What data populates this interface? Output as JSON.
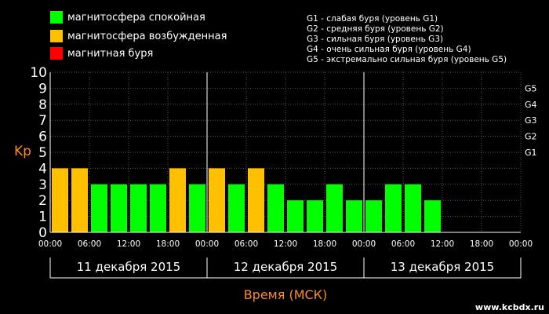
{
  "chart_data": {
    "type": "bar",
    "ylabel": "Kp",
    "xlabel": "Время (МСК)",
    "ylim": [
      0,
      10
    ],
    "yticks": [
      0,
      1,
      2,
      3,
      4,
      5,
      6,
      7,
      8,
      9,
      10
    ],
    "right_ticks": [
      {
        "label": "G1",
        "y": 5
      },
      {
        "label": "G2",
        "y": 6
      },
      {
        "label": "G3",
        "y": 7
      },
      {
        "label": "G4",
        "y": 8
      },
      {
        "label": "G5",
        "y": 9
      }
    ],
    "time_ticks": [
      "00:00",
      "06:00",
      "12:00",
      "18:00",
      "00:00",
      "06:00",
      "12:00",
      "18:00",
      "00:00",
      "06:00",
      "12:00",
      "18:00",
      "00:00"
    ],
    "days": [
      "11 декабря 2015",
      "12 декабря 2015",
      "13 декабря 2015"
    ],
    "values": [
      4,
      4,
      3,
      3,
      3,
      3,
      4,
      3,
      4,
      3,
      4,
      3,
      2,
      2,
      3,
      2,
      2,
      3,
      3,
      2
    ],
    "thresholds": {
      "excited": 4,
      "storm": 5
    },
    "legend": [
      {
        "label": "магнитосфера спокойная",
        "color": "#00ff00"
      },
      {
        "label": "магнитосфера возбужденная",
        "color": "#ffc000"
      },
      {
        "label": "магнитная буря",
        "color": "#ff0000"
      }
    ],
    "g_legend": [
      "G1 - слабая буря (уровень G1)",
      "G2 - средняя буря (уровень G2)",
      "G3 - сильная буря (уровень G3)",
      "G4 - очень сильная буря (уровень G4)",
      "G5 - экстремально сильная буря (уровень G5)"
    ],
    "grid": true
  },
  "watermark": "www.kcbdx.ru",
  "colors": {
    "calm": "#00ff00",
    "excited": "#ffc000",
    "storm": "#ff0000",
    "axis_label": "#ff8c1a",
    "grid": "#555555"
  }
}
